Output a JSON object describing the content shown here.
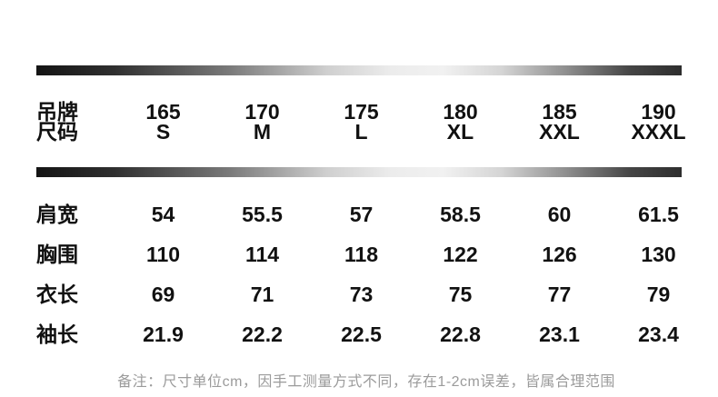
{
  "chart_data": {
    "type": "table",
    "row_header": {
      "line1": "吊牌",
      "line2": "尺码"
    },
    "size_columns": [
      {
        "height": "165",
        "size": "S"
      },
      {
        "height": "170",
        "size": "M"
      },
      {
        "height": "175",
        "size": "L"
      },
      {
        "height": "180",
        "size": "XL"
      },
      {
        "height": "185",
        "size": "XXL"
      },
      {
        "height": "190",
        "size": "XXXL"
      }
    ],
    "measurement_rows": [
      {
        "label": "肩宽",
        "values": [
          "54",
          "55.5",
          "57",
          "58.5",
          "60",
          "61.5"
        ]
      },
      {
        "label": "胸围",
        "values": [
          "110",
          "114",
          "118",
          "122",
          "126",
          "130"
        ]
      },
      {
        "label": "衣长",
        "values": [
          "69",
          "71",
          "73",
          "75",
          "77",
          "79"
        ]
      },
      {
        "label": "袖长",
        "values": [
          "21.9",
          "22.2",
          "22.5",
          "22.8",
          "23.1",
          "23.4"
        ]
      }
    ],
    "note": "备注：尺寸单位cm，因手工测量方式不同，存在1-2cm误差，皆属合理范围"
  },
  "colors": {
    "background": "#ffffff",
    "table_text": "#111111",
    "note_text": "#9b9b9b",
    "divider_dark": "#141414",
    "divider_light": "#f1f1f1"
  }
}
